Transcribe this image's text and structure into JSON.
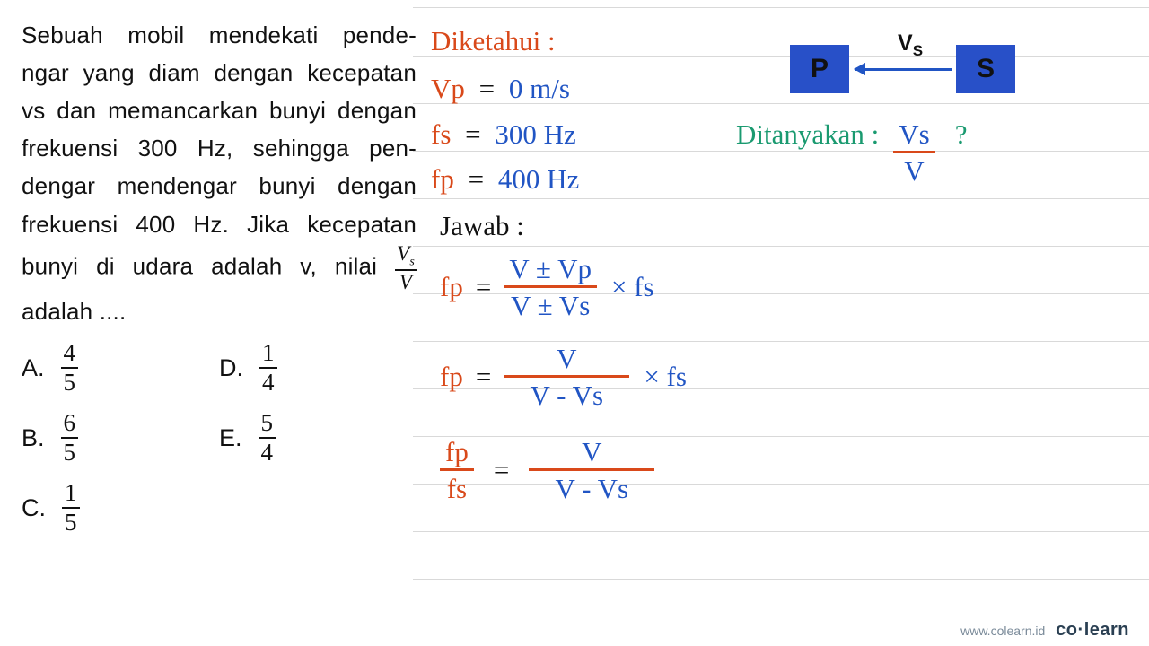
{
  "colors": {
    "red": "#d9491a",
    "blue": "#2155c4",
    "green": "#1a9a70",
    "box": "#2850c8",
    "black": "#111111",
    "ruled": "#d9d9d9"
  },
  "question": {
    "text_pre": "Sebuah mobil mendekati pende- ngar yang diam dengan kecepatan vs dan memancarkan bunyi dengan frekuensi 300 Hz, sehingga pen- dengar mendengar bunyi dengan frekuensi 400 Hz. Jika kecepatan bunyi di udara adalah v, nilai ",
    "frac_num": "V",
    "frac_num_sub": "s",
    "frac_den": "V",
    "text_post": " adalah ....",
    "options": [
      {
        "label": "A.",
        "num": "4",
        "den": "5"
      },
      {
        "label": "B.",
        "num": "6",
        "den": "5"
      },
      {
        "label": "C.",
        "num": "1",
        "den": "5"
      },
      {
        "label": "D.",
        "num": "1",
        "den": "4"
      },
      {
        "label": "E.",
        "num": "5",
        "den": "4"
      }
    ]
  },
  "diagram": {
    "p_label": "P",
    "s_label": "S",
    "vs_label": "V",
    "vs_sub": "S"
  },
  "known": {
    "title": "Diketahui :",
    "lines": [
      {
        "lhs": "Vp",
        "eq": "=",
        "rhs": "0 m/s"
      },
      {
        "lhs": "fs",
        "eq": "=",
        "rhs": "300 Hz"
      },
      {
        "lhs": "fp",
        "eq": "=",
        "rhs": "400 Hz"
      }
    ]
  },
  "asked": {
    "title": "Ditanyakan :",
    "frac_num": "Vs",
    "frac_den": "V",
    "qmark": "?"
  },
  "answer": {
    "title": "Jawab :",
    "eq1": {
      "lhs": "fp",
      "eq": "=",
      "num": "V ± Vp",
      "den": "V ± Vs",
      "tail": "× fs"
    },
    "eq2": {
      "lhs": "fp",
      "eq": "=",
      "num": "V",
      "den": "V - Vs",
      "tail": "× fs"
    },
    "eq3": {
      "lnum": "fp",
      "lden": "fs",
      "eq": "=",
      "rnum": "V",
      "rden": "V - Vs"
    }
  },
  "footer": {
    "site": "www.colearn.id",
    "brand_a": "co",
    "brand_dot": "·",
    "brand_b": "learn"
  }
}
